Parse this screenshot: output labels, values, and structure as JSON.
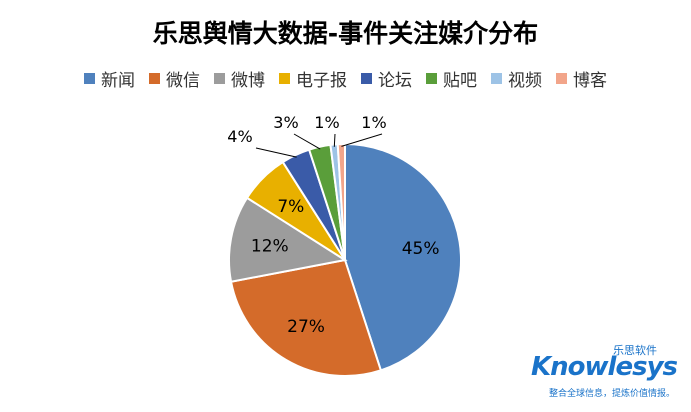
{
  "chart_data": {
    "type": "pie",
    "title": "乐思舆情大数据-事件关注媒介分布",
    "categories": [
      "新闻",
      "微信",
      "微博",
      "电子报",
      "论坛",
      "贴吧",
      "视频",
      "博客"
    ],
    "values": [
      45,
      27,
      12,
      7,
      4,
      3,
      1,
      1
    ],
    "labels": [
      "45%",
      "27%",
      "12%",
      "7%",
      "4%",
      "3%",
      "1%",
      "1%"
    ],
    "colors": [
      "#4f81bd",
      "#d46b2a",
      "#9c9c9c",
      "#e8b000",
      "#3a5ba8",
      "#5a9e3a",
      "#9dc3e6",
      "#f2a58a"
    ],
    "legend_position": "top",
    "start_angle": "12 o'clock, clockwise"
  },
  "watermark": {
    "brand_cn": "乐思软件",
    "brand_name": "Knowlesys",
    "tagline": "整合全球信息，提炼价值情报。"
  }
}
